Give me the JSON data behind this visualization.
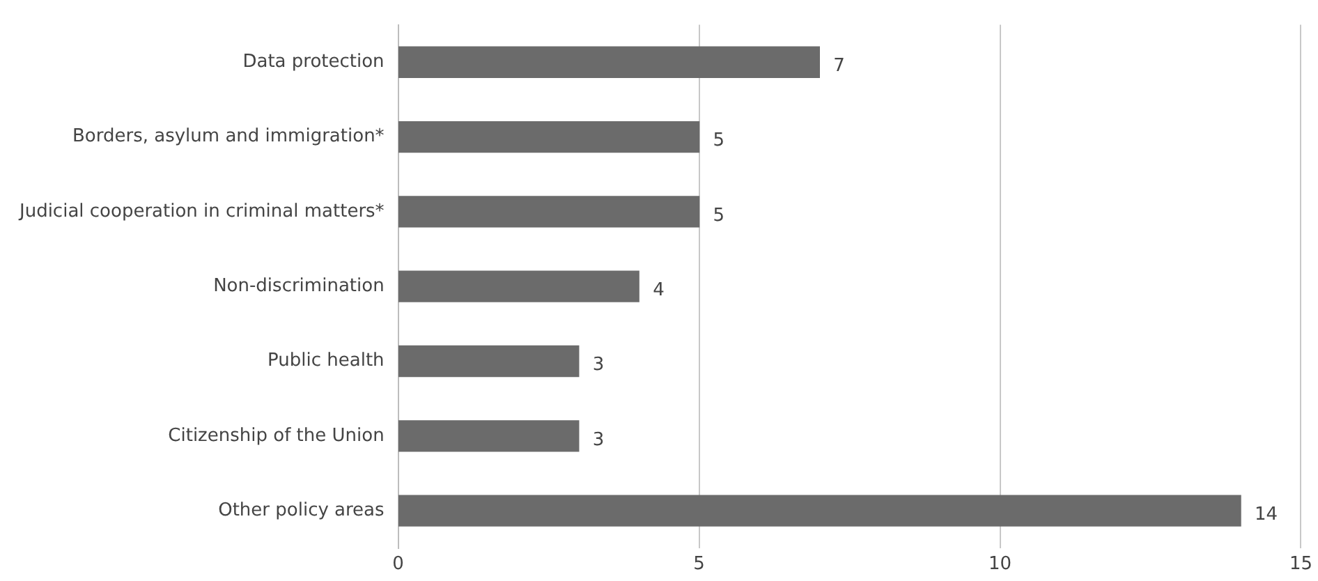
{
  "chart_data": {
    "type": "bar",
    "orientation": "horizontal",
    "categories": [
      "Data protection",
      "Borders, asylum and immigration*",
      "Judicial cooperation in criminal matters*",
      "Non-discrimination",
      "Public health",
      "Citizenship of the Union",
      "Other policy areas"
    ],
    "values": [
      7,
      5,
      5,
      4,
      3,
      3,
      14
    ],
    "color": "#6b6b6b",
    "xlim": [
      0,
      15
    ],
    "xticks": [
      0,
      5,
      10,
      15
    ],
    "grid": "x",
    "data_labels": true,
    "legend": false
  }
}
